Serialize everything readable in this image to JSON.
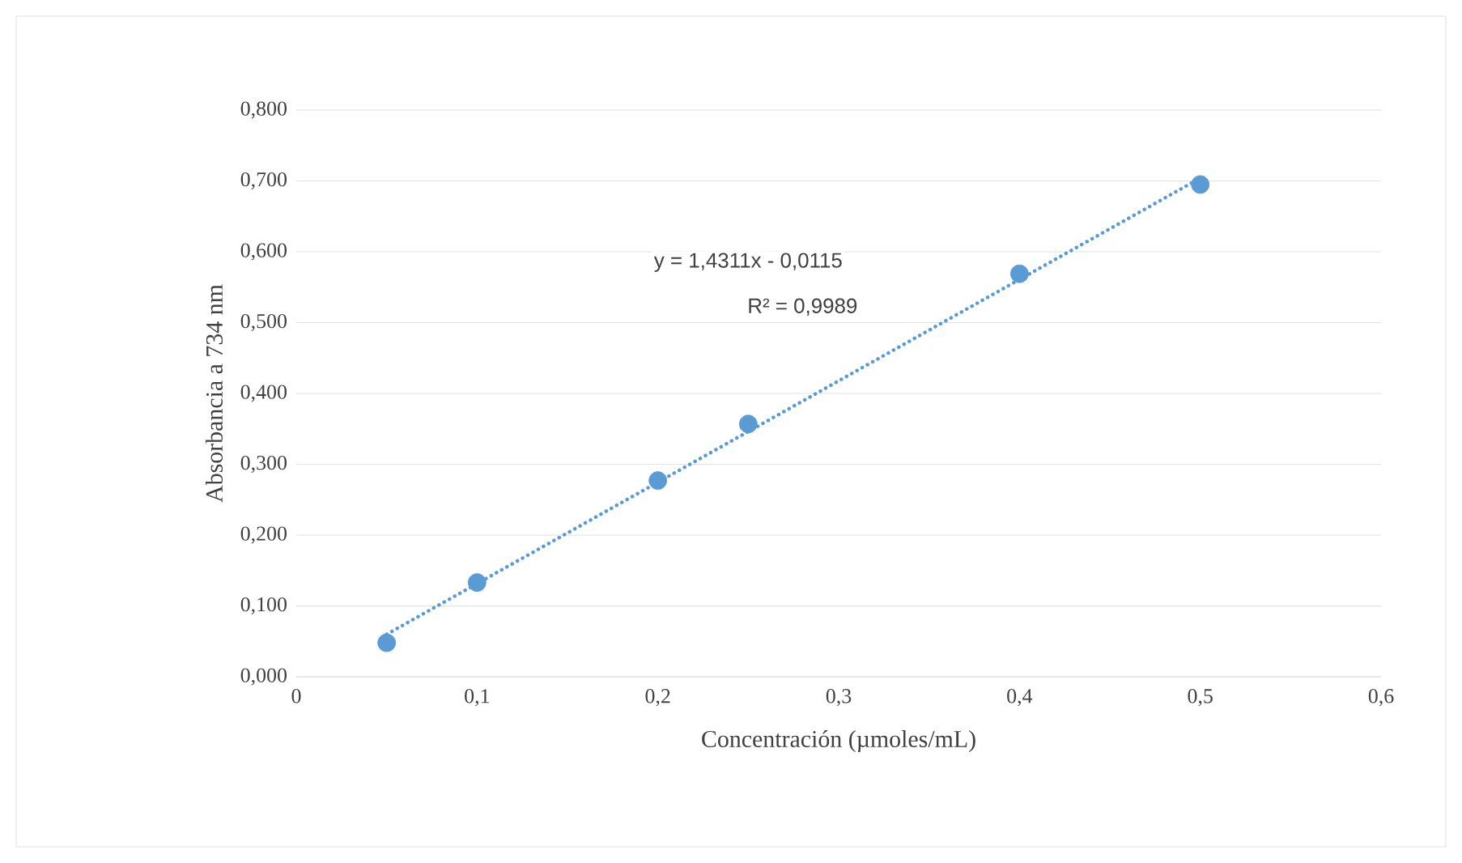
{
  "chart_data": {
    "type": "scatter",
    "xlabel": "Concentración (µmoles/mL)",
    "ylabel": "Absorbancia a 734 nm",
    "xlim": [
      0,
      0.6
    ],
    "ylim": [
      0,
      0.8
    ],
    "xticks": [
      {
        "value": 0,
        "label": "0"
      },
      {
        "value": 0.1,
        "label": "0,1"
      },
      {
        "value": 0.2,
        "label": "0,2"
      },
      {
        "value": 0.3,
        "label": "0,3"
      },
      {
        "value": 0.4,
        "label": "0,4"
      },
      {
        "value": 0.5,
        "label": "0,5"
      },
      {
        "value": 0.6,
        "label": "0,6"
      }
    ],
    "yticks": [
      {
        "value": 0,
        "label": "0,000"
      },
      {
        "value": 0.1,
        "label": "0,100"
      },
      {
        "value": 0.2,
        "label": "0,200"
      },
      {
        "value": 0.3,
        "label": "0,300"
      },
      {
        "value": 0.4,
        "label": "0,400"
      },
      {
        "value": 0.5,
        "label": "0,500"
      },
      {
        "value": 0.6,
        "label": "0,600"
      },
      {
        "value": 0.7,
        "label": "0,700"
      },
      {
        "value": 0.8,
        "label": "0,800"
      }
    ],
    "grid": "y",
    "legend": false,
    "series": [
      {
        "type": "scatter",
        "color": "#5b9bd5",
        "marker": "circle",
        "x": [
          0.05,
          0.1,
          0.2,
          0.25,
          0.4,
          0.5
        ],
        "values": [
          0.048,
          0.133,
          0.277,
          0.357,
          0.569,
          0.695
        ]
      },
      {
        "type": "line",
        "color": "#5b9bd5",
        "line_style": "dotted",
        "x": [
          0.05,
          0.5
        ],
        "values": [
          0.06,
          0.704
        ]
      }
    ],
    "annotations": [
      "y = 1,4311x - 0,0115",
      "R² = 0,9989"
    ]
  }
}
